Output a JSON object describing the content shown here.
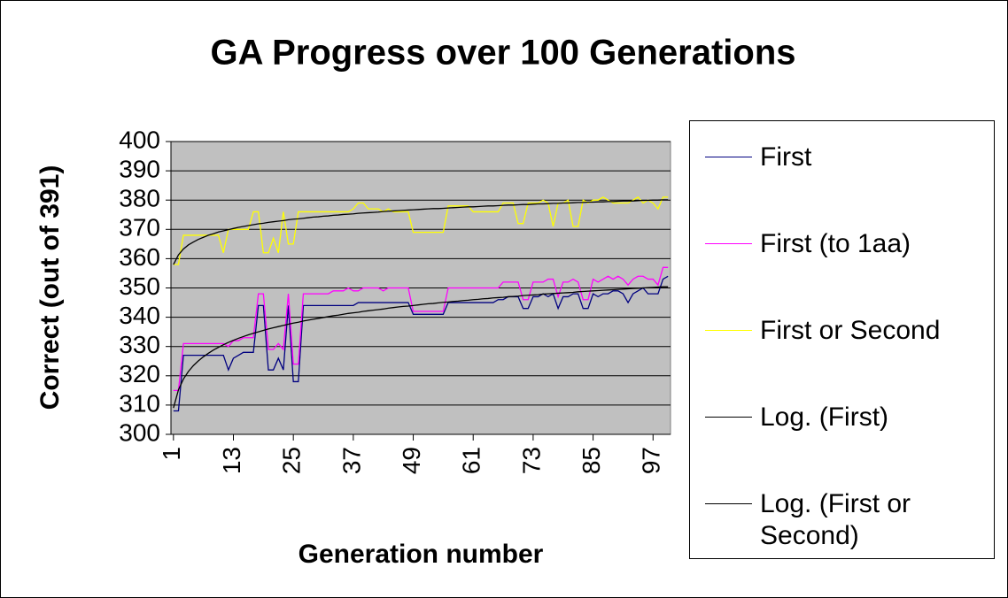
{
  "chart_data": {
    "type": "line",
    "title": "GA Progress over 100 Generations",
    "xlabel": "Generation number",
    "ylabel": "Correct (out of 391)",
    "x": [
      1,
      2,
      3,
      4,
      5,
      6,
      7,
      8,
      9,
      10,
      11,
      12,
      13,
      14,
      15,
      16,
      17,
      18,
      19,
      20,
      21,
      22,
      23,
      24,
      25,
      26,
      27,
      28,
      29,
      30,
      31,
      32,
      33,
      34,
      35,
      36,
      37,
      38,
      39,
      40,
      41,
      42,
      43,
      44,
      45,
      46,
      47,
      48,
      49,
      50,
      51,
      52,
      53,
      54,
      55,
      56,
      57,
      58,
      59,
      60,
      61,
      62,
      63,
      64,
      65,
      66,
      67,
      68,
      69,
      70,
      71,
      72,
      73,
      74,
      75,
      76,
      77,
      78,
      79,
      80,
      81,
      82,
      83,
      84,
      85,
      86,
      87,
      88,
      89,
      90,
      91,
      92,
      93,
      94,
      95,
      96,
      97,
      98,
      99,
      100
    ],
    "xlim": [
      0.5,
      100.5
    ],
    "xticks": [
      1,
      13,
      25,
      37,
      49,
      61,
      73,
      85,
      97
    ],
    "ylim": [
      300,
      400
    ],
    "yticks": [
      300,
      310,
      320,
      330,
      340,
      350,
      360,
      370,
      380,
      390,
      400
    ],
    "grid": true,
    "plot_background": "#c0c0c0",
    "legend": "right",
    "series": [
      {
        "name": "First",
        "color": "#000080",
        "values": [
          308,
          308,
          327,
          327,
          327,
          327,
          327,
          327,
          327,
          327,
          327,
          322,
          326,
          327,
          328,
          328,
          328,
          344,
          344,
          322,
          322,
          326,
          322,
          344,
          318,
          318,
          344,
          344,
          344,
          344,
          344,
          344,
          344,
          344,
          344,
          344,
          344,
          345,
          345,
          345,
          345,
          345,
          345,
          345,
          345,
          345,
          345,
          345,
          341,
          341,
          341,
          341,
          341,
          341,
          341,
          345,
          345,
          345,
          345,
          345,
          345,
          345,
          345,
          345,
          345,
          346,
          346,
          347,
          347,
          347,
          343,
          343,
          347,
          347,
          348,
          347,
          348,
          343,
          347,
          347,
          348,
          348,
          343,
          343,
          348,
          347,
          348,
          348,
          349,
          349,
          348,
          345,
          348,
          349,
          350,
          348,
          348,
          348,
          353,
          354
        ]
      },
      {
        "name": "First (to 1aa)",
        "color": "#ff00ff",
        "values": [
          315,
          315,
          331,
          331,
          331,
          331,
          331,
          331,
          331,
          331,
          331,
          330,
          332,
          332,
          333,
          333,
          333,
          348,
          348,
          329,
          329,
          331,
          329,
          348,
          324,
          324,
          348,
          348,
          348,
          348,
          348,
          348,
          349,
          349,
          349,
          350,
          349,
          349,
          350,
          350,
          350,
          350,
          349,
          350,
          350,
          350,
          350,
          350,
          342,
          342,
          342,
          342,
          342,
          342,
          342,
          350,
          350,
          350,
          350,
          350,
          350,
          350,
          350,
          350,
          350,
          350,
          352,
          352,
          352,
          352,
          346,
          346,
          352,
          352,
          352,
          353,
          353,
          347,
          352,
          352,
          353,
          352,
          346,
          346,
          353,
          352,
          353,
          354,
          353,
          354,
          353,
          351,
          353,
          354,
          354,
          353,
          353,
          351,
          357,
          357
        ]
      },
      {
        "name": "First or Second",
        "color": "#ffff00",
        "values": [
          358,
          358,
          368,
          368,
          368,
          368,
          368,
          368,
          368,
          368,
          362,
          370,
          370,
          370,
          370,
          370,
          376,
          376,
          362,
          362,
          367,
          362,
          376,
          365,
          365,
          376,
          376,
          376,
          376,
          376,
          376,
          376,
          376,
          376,
          376,
          376,
          377,
          379,
          379,
          377,
          377,
          377,
          376,
          377,
          376,
          376,
          376,
          376,
          369,
          369,
          369,
          369,
          369,
          369,
          369,
          378,
          378,
          378,
          378,
          378,
          376,
          376,
          376,
          376,
          376,
          376,
          379,
          379,
          379,
          372,
          372,
          379,
          379,
          379,
          380,
          379,
          371,
          379,
          379,
          380,
          371,
          371,
          380,
          379,
          380,
          380,
          381,
          380,
          379,
          379,
          379,
          379,
          380,
          381,
          379,
          380,
          379,
          377,
          381,
          381
        ]
      },
      {
        "name": "Log. (First)",
        "color": "#000000",
        "values": [
          309.0,
          315.2,
          318.9,
          321.5,
          323.5,
          325.1,
          326.5,
          327.7,
          328.8,
          329.7,
          330.6,
          331.4,
          332.1,
          332.8,
          333.4,
          334.0,
          334.5,
          335.0,
          335.5,
          336.0,
          336.4,
          336.8,
          337.2,
          337.6,
          338.0,
          338.3,
          338.7,
          339.0,
          339.3,
          339.6,
          339.9,
          340.2,
          340.5,
          340.7,
          341.0,
          341.3,
          341.5,
          341.7,
          342.0,
          342.2,
          342.4,
          342.6,
          342.8,
          343.1,
          343.3,
          343.5,
          343.7,
          343.8,
          344.0,
          344.2,
          344.4,
          344.6,
          344.7,
          344.9,
          345.1,
          345.2,
          345.4,
          345.5,
          345.7,
          345.8,
          346.0,
          346.1,
          346.3,
          346.4,
          346.6,
          346.7,
          346.8,
          347.0,
          347.1,
          347.2,
          347.4,
          347.5,
          347.6,
          347.7,
          347.9,
          348.0,
          348.1,
          348.2,
          348.3,
          348.4,
          348.5,
          348.7,
          348.8,
          348.9,
          349.0,
          349.1,
          349.2,
          349.3,
          349.4,
          349.5,
          349.6,
          349.7,
          349.8,
          349.9,
          350.0,
          350.1,
          350.2,
          350.3,
          350.4,
          350.4
        ]
      },
      {
        "name": "Log. (First or Second)",
        "color": "#000000",
        "values": [
          358.0,
          361.3,
          363.3,
          364.7,
          365.7,
          366.6,
          367.3,
          368.0,
          368.5,
          369.1,
          369.5,
          369.9,
          370.3,
          370.7,
          371.0,
          371.3,
          371.6,
          371.9,
          372.1,
          372.4,
          372.6,
          372.8,
          373.0,
          373.3,
          373.5,
          373.6,
          373.8,
          374.0,
          374.2,
          374.3,
          374.5,
          374.6,
          374.8,
          374.9,
          375.1,
          375.2,
          375.3,
          375.5,
          375.6,
          375.7,
          375.8,
          375.9,
          376.1,
          376.2,
          376.3,
          376.4,
          376.5,
          376.6,
          376.7,
          376.8,
          376.9,
          377.0,
          377.1,
          377.1,
          377.2,
          377.3,
          377.4,
          377.5,
          377.6,
          377.7,
          377.7,
          377.8,
          377.9,
          378.0,
          378.0,
          378.1,
          378.2,
          378.3,
          378.3,
          378.4,
          378.5,
          378.5,
          378.6,
          378.7,
          378.7,
          378.8,
          378.9,
          378.9,
          379.0,
          379.0,
          379.1,
          379.2,
          379.2,
          379.3,
          379.3,
          379.4,
          379.4,
          379.5,
          379.5,
          379.6,
          379.7,
          379.7,
          379.7,
          379.8,
          379.9,
          379.9,
          380.0,
          380.0,
          380.1,
          380.1
        ]
      }
    ]
  }
}
